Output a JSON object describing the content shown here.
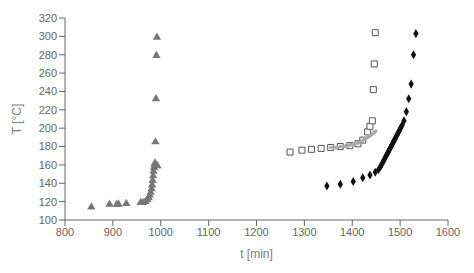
{
  "chart_data": {
    "type": "scatter",
    "xlabel": "t [min]",
    "ylabel": "T [°C]",
    "xlim": [
      800,
      1600
    ],
    "ylim": [
      100,
      320
    ],
    "xticks": [
      800,
      900,
      1000,
      1100,
      1200,
      1300,
      1400,
      1500,
      1600
    ],
    "yticks": [
      100,
      120,
      140,
      160,
      180,
      200,
      220,
      240,
      260,
      280,
      300,
      320
    ],
    "grid": false,
    "series": [
      {
        "color": "#777777",
        "marker": "triangle",
        "x": [
          855,
          893,
          908,
          912,
          928,
          958,
          963,
          968,
          972,
          975,
          977,
          979,
          981,
          982,
          983,
          984,
          985,
          986,
          987,
          988,
          989,
          990,
          991,
          992,
          993
        ],
        "values": [
          114,
          117,
          117,
          117,
          118,
          119,
          119,
          120,
          122,
          124,
          127,
          130,
          134,
          138,
          143,
          148,
          153,
          157,
          160,
          162,
          185,
          232,
          279,
          299,
          159
        ]
      },
      {
        "color": "#555555",
        "marker": "open_square",
        "x": [
          1270,
          1295,
          1315,
          1335,
          1355,
          1375,
          1395,
          1412,
          1422,
          1432,
          1437,
          1442,
          1444,
          1446,
          1448
        ],
        "values": [
          174,
          176,
          177,
          178,
          179,
          180,
          181,
          183,
          187,
          196,
          202,
          208,
          242,
          270,
          304
        ]
      },
      {
        "color": "#aaaaaa",
        "marker": "circle",
        "x": [
          1355,
          1360,
          1365,
          1370,
          1375,
          1378,
          1381,
          1384,
          1387,
          1390,
          1393,
          1396,
          1399,
          1402,
          1405,
          1408,
          1411,
          1414,
          1417,
          1420,
          1423,
          1426,
          1429,
          1432,
          1435,
          1438,
          1441,
          1443,
          1445,
          1447,
          1449
        ],
        "values": [
          179,
          179,
          179,
          179,
          180,
          180,
          180,
          180,
          181,
          181,
          181,
          182,
          182,
          182,
          183,
          183,
          184,
          184,
          185,
          186,
          187,
          188,
          189,
          190,
          191,
          192,
          193,
          194,
          195,
          196,
          197
        ]
      },
      {
        "color": "#111111",
        "marker": "diamond",
        "x": [
          1347,
          1375,
          1402,
          1422,
          1437,
          1448,
          1455,
          1459,
          1462,
          1465,
          1467,
          1469,
          1471,
          1473,
          1475,
          1477,
          1479,
          1481,
          1483,
          1485,
          1487,
          1489,
          1491,
          1493,
          1495,
          1497,
          1499,
          1501,
          1504,
          1508,
          1513,
          1518,
          1523,
          1528,
          1533
        ],
        "values": [
          137,
          139,
          142,
          146,
          149,
          152,
          155,
          158,
          161,
          164,
          166,
          168,
          170,
          172,
          174,
          176,
          178,
          180,
          182,
          184,
          186,
          188,
          190,
          192,
          194,
          196,
          198,
          200,
          203,
          208,
          218,
          232,
          248,
          280,
          303
        ]
      }
    ]
  }
}
